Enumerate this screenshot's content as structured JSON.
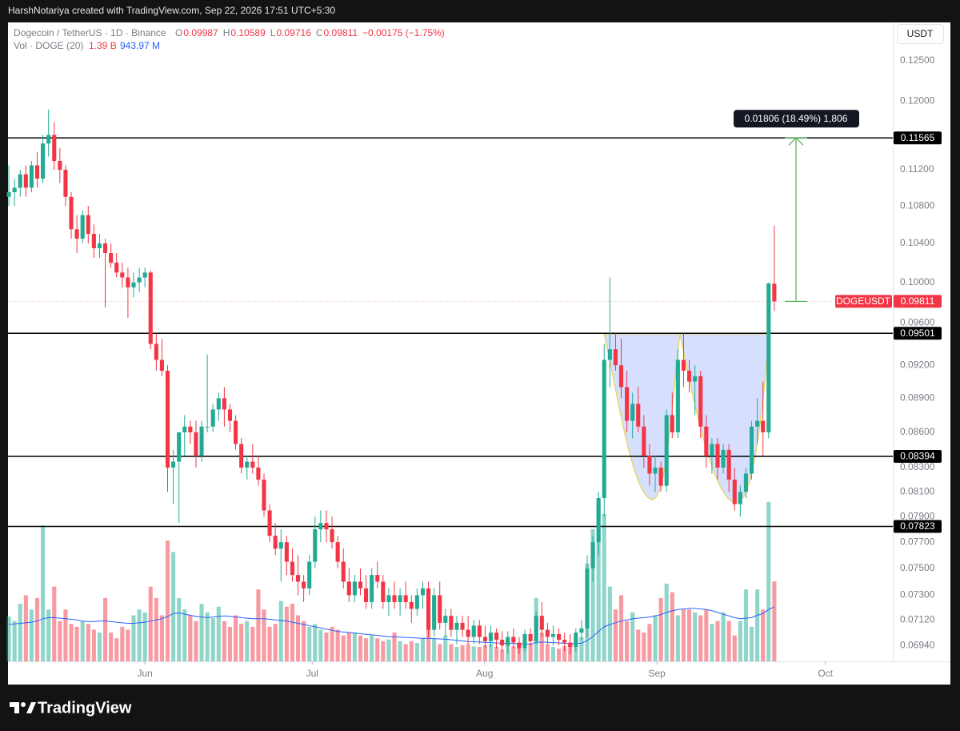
{
  "page": {
    "credit": "HarshNotariya created with TradingView.com, Sep 22, 2026 17:51 UTC+5:30",
    "brand": "TradingView"
  },
  "chart_data": {
    "type": "candlestick",
    "title": "Dogecoin / TetherUS · 1D · Binance",
    "currency": "USDT",
    "symbol": "DOGEUSDT",
    "ohlc_labels": [
      "O",
      "H",
      "L",
      "C"
    ],
    "change": "−0.00175 (−1.75%)",
    "volume_title": "Vol · DOGE (20)",
    "volume_readout": "1.39 B",
    "volume_ma_readout": "943.97 M",
    "measure_label": "0.01806 (18.49%) 1,806",
    "log_scale": true,
    "grid": false,
    "up_color": "#22ab94",
    "down_color": "#f23645",
    "level_color": "#000000",
    "measure_color": "#4caf50",
    "ma_color": "#2962ff",
    "ylim": [
      0.0683,
      0.1299
    ],
    "xlim": [
      -0.15,
      155.9
    ],
    "vol_ylim": [
      0,
      11100
    ],
    "yticks": [
      {
        "value": 0.125,
        "label": "0.12500"
      },
      {
        "value": 0.12,
        "label": "0.12000"
      },
      {
        "value": 0.112,
        "label": "0.11200"
      },
      {
        "value": 0.108,
        "label": "0.10800"
      },
      {
        "value": 0.104,
        "label": "0.10400"
      },
      {
        "value": 0.1,
        "label": "0.10000"
      },
      {
        "value": 0.096,
        "label": "0.09600"
      },
      {
        "value": 0.092,
        "label": "0.09200"
      },
      {
        "value": 0.089,
        "label": "0.08900"
      },
      {
        "value": 0.086,
        "label": "0.08600"
      },
      {
        "value": 0.083,
        "label": "0.08300"
      },
      {
        "value": 0.081,
        "label": "0.08100"
      },
      {
        "value": 0.079,
        "label": "0.07900"
      },
      {
        "value": 0.077,
        "label": "0.07700"
      },
      {
        "value": 0.075,
        "label": "0.07500"
      },
      {
        "value": 0.073,
        "label": "0.07300"
      },
      {
        "value": 0.0712,
        "label": "0.07120"
      },
      {
        "value": 0.0694,
        "label": "0.06940"
      }
    ],
    "xticks": [
      {
        "value": 24,
        "label": "Jun"
      },
      {
        "value": 53.5,
        "label": "Jul"
      },
      {
        "value": 83.9,
        "label": "Aug"
      },
      {
        "value": 114.3,
        "label": "Sep"
      },
      {
        "value": 144,
        "label": "Oct"
      }
    ],
    "levels": [
      0.11565,
      0.09501,
      0.08394,
      0.07823
    ],
    "current_price": 0.09811,
    "candles": [
      [
        0.109,
        0.1125,
        0.108,
        0.1095
      ],
      [
        0.1095,
        0.111,
        0.108,
        0.11
      ],
      [
        0.11,
        0.112,
        0.109,
        0.1115
      ],
      [
        0.1115,
        0.1125,
        0.109,
        0.11
      ],
      [
        0.11,
        0.113,
        0.1095,
        0.1125
      ],
      [
        0.1125,
        0.114,
        0.11,
        0.111
      ],
      [
        0.111,
        0.116,
        0.1105,
        0.115
      ],
      [
        0.115,
        0.119,
        0.1135,
        0.116
      ],
      [
        0.116,
        0.1175,
        0.112,
        0.113
      ],
      [
        0.113,
        0.1145,
        0.1105,
        0.112
      ],
      [
        0.112,
        0.1125,
        0.108,
        0.109
      ],
      [
        0.109,
        0.1095,
        0.1045,
        0.1055
      ],
      [
        0.1055,
        0.107,
        0.103,
        0.1045
      ],
      [
        0.1045,
        0.1075,
        0.104,
        0.107
      ],
      [
        0.107,
        0.108,
        0.104,
        0.105
      ],
      [
        0.105,
        0.106,
        0.1025,
        0.1035
      ],
      [
        0.1035,
        0.105,
        0.1025,
        0.104
      ],
      [
        0.104,
        0.1045,
        0.0975,
        0.103
      ],
      [
        0.103,
        0.104,
        0.1015,
        0.102
      ],
      [
        0.102,
        0.103,
        0.1005,
        0.101
      ],
      [
        0.101,
        0.102,
        0.0995,
        0.1005
      ],
      [
        0.1005,
        0.1015,
        0.0965,
        0.0995
      ],
      [
        0.0995,
        0.101,
        0.0985,
        0.1
      ],
      [
        0.1,
        0.1015,
        0.099,
        0.1005
      ],
      [
        0.1005,
        0.1015,
        0.0995,
        0.101
      ],
      [
        0.101,
        0.1012,
        0.0935,
        0.094
      ],
      [
        0.094,
        0.095,
        0.0915,
        0.0925
      ],
      [
        0.0925,
        0.0945,
        0.091,
        0.0915
      ],
      [
        0.0915,
        0.092,
        0.081,
        0.083
      ],
      [
        0.083,
        0.0845,
        0.08,
        0.0835
      ],
      [
        0.0835,
        0.086,
        0.0785,
        0.086
      ],
      [
        0.086,
        0.0875,
        0.084,
        0.0865
      ],
      [
        0.0865,
        0.087,
        0.085,
        0.086
      ],
      [
        0.086,
        0.087,
        0.083,
        0.084
      ],
      [
        0.084,
        0.087,
        0.0835,
        0.0865
      ],
      [
        0.0865,
        0.093,
        0.086,
        0.0865
      ],
      [
        0.0865,
        0.0885,
        0.086,
        0.088
      ],
      [
        0.088,
        0.0895,
        0.087,
        0.089
      ],
      [
        0.089,
        0.09,
        0.0865,
        0.088
      ],
      [
        0.088,
        0.0885,
        0.086,
        0.087
      ],
      [
        0.087,
        0.0875,
        0.0845,
        0.085
      ],
      [
        0.085,
        0.0855,
        0.0825,
        0.083
      ],
      [
        0.083,
        0.084,
        0.082,
        0.0835
      ],
      [
        0.0835,
        0.085,
        0.0825,
        0.083
      ],
      [
        0.083,
        0.084,
        0.0815,
        0.082
      ],
      [
        0.082,
        0.0825,
        0.079,
        0.0795
      ],
      [
        0.0795,
        0.08,
        0.077,
        0.0775
      ],
      [
        0.0775,
        0.0785,
        0.076,
        0.0765
      ],
      [
        0.0765,
        0.078,
        0.074,
        0.077
      ],
      [
        0.077,
        0.0775,
        0.0745,
        0.0755
      ],
      [
        0.0755,
        0.0765,
        0.074,
        0.0745
      ],
      [
        0.0745,
        0.076,
        0.073,
        0.074
      ],
      [
        0.074,
        0.0745,
        0.0725,
        0.0735
      ],
      [
        0.0735,
        0.076,
        0.073,
        0.0755
      ],
      [
        0.0755,
        0.079,
        0.075,
        0.078
      ],
      [
        0.078,
        0.0795,
        0.077,
        0.0785
      ],
      [
        0.0785,
        0.0795,
        0.077,
        0.078
      ],
      [
        0.078,
        0.079,
        0.0765,
        0.077
      ],
      [
        0.077,
        0.0775,
        0.075,
        0.0755
      ],
      [
        0.0755,
        0.0765,
        0.0735,
        0.074
      ],
      [
        0.074,
        0.075,
        0.0725,
        0.073
      ],
      [
        0.073,
        0.0745,
        0.0725,
        0.074
      ],
      [
        0.074,
        0.075,
        0.073,
        0.0735
      ],
      [
        0.0735,
        0.0745,
        0.072,
        0.0725
      ],
      [
        0.0725,
        0.075,
        0.072,
        0.0745
      ],
      [
        0.0745,
        0.0755,
        0.0735,
        0.074
      ],
      [
        0.074,
        0.0745,
        0.072,
        0.0725
      ],
      [
        0.0725,
        0.0735,
        0.0715,
        0.073
      ],
      [
        0.073,
        0.074,
        0.072,
        0.0725
      ],
      [
        0.0725,
        0.0735,
        0.0715,
        0.073
      ],
      [
        0.073,
        0.074,
        0.072,
        0.0725
      ],
      [
        0.0725,
        0.073,
        0.071,
        0.072
      ],
      [
        0.072,
        0.0735,
        0.0715,
        0.073
      ],
      [
        0.073,
        0.074,
        0.072,
        0.0735
      ],
      [
        0.0735,
        0.074,
        0.07,
        0.0705
      ],
      [
        0.0705,
        0.0735,
        0.07,
        0.073
      ],
      [
        0.073,
        0.074,
        0.0705,
        0.071
      ],
      [
        0.071,
        0.072,
        0.07,
        0.0715
      ],
      [
        0.0715,
        0.072,
        0.07,
        0.0705
      ],
      [
        0.0705,
        0.0715,
        0.0695,
        0.071
      ],
      [
        0.071,
        0.0715,
        0.07,
        0.0705
      ],
      [
        0.0705,
        0.0715,
        0.0695,
        0.07
      ],
      [
        0.07,
        0.0712,
        0.0695,
        0.0708
      ],
      [
        0.0708,
        0.0712,
        0.0695,
        0.07
      ],
      [
        0.07,
        0.0708,
        0.0692,
        0.0697
      ],
      [
        0.0697,
        0.0708,
        0.0693,
        0.0703
      ],
      [
        0.0703,
        0.0706,
        0.0692,
        0.0698
      ],
      [
        0.0698,
        0.0704,
        0.069,
        0.0694
      ],
      [
        0.0694,
        0.0704,
        0.0688,
        0.07
      ],
      [
        0.07,
        0.0706,
        0.0692,
        0.0696
      ],
      [
        0.0696,
        0.07,
        0.0688,
        0.0692
      ],
      [
        0.0692,
        0.0705,
        0.069,
        0.0702
      ],
      [
        0.0702,
        0.0706,
        0.0694,
        0.0697
      ],
      [
        0.0697,
        0.0718,
        0.0695,
        0.0715
      ],
      [
        0.0715,
        0.0725,
        0.07,
        0.0705
      ],
      [
        0.0705,
        0.071,
        0.0695,
        0.07
      ],
      [
        0.07,
        0.0708,
        0.0694,
        0.0702
      ],
      [
        0.0702,
        0.0706,
        0.0694,
        0.0698
      ],
      [
        0.0698,
        0.0703,
        0.069,
        0.0696
      ],
      [
        0.0696,
        0.0702,
        0.0688,
        0.0693
      ],
      [
        0.0693,
        0.0706,
        0.069,
        0.0703
      ],
      [
        0.0703,
        0.0712,
        0.0698,
        0.0706
      ],
      [
        0.0706,
        0.076,
        0.07,
        0.075
      ],
      [
        0.075,
        0.0775,
        0.074,
        0.077
      ],
      [
        0.077,
        0.081,
        0.076,
        0.0805
      ],
      [
        0.0805,
        0.094,
        0.079,
        0.0925
      ],
      [
        0.0925,
        0.1005,
        0.09,
        0.0935
      ],
      [
        0.0935,
        0.095,
        0.0915,
        0.092
      ],
      [
        0.092,
        0.0945,
        0.089,
        0.09
      ],
      [
        0.09,
        0.0915,
        0.086,
        0.087
      ],
      [
        0.087,
        0.0895,
        0.0855,
        0.0885
      ],
      [
        0.0885,
        0.09,
        0.086,
        0.0865
      ],
      [
        0.0865,
        0.0875,
        0.083,
        0.084
      ],
      [
        0.084,
        0.085,
        0.0815,
        0.0825
      ],
      [
        0.0825,
        0.084,
        0.081,
        0.083
      ],
      [
        0.083,
        0.0835,
        0.081,
        0.0815
      ],
      [
        0.0815,
        0.088,
        0.081,
        0.0875
      ],
      [
        0.0875,
        0.0895,
        0.0855,
        0.086
      ],
      [
        0.086,
        0.0935,
        0.0855,
        0.0925
      ],
      [
        0.0925,
        0.095,
        0.09,
        0.0915
      ],
      [
        0.0915,
        0.0925,
        0.0895,
        0.0905
      ],
      [
        0.0905,
        0.092,
        0.0875,
        0.091
      ],
      [
        0.091,
        0.0915,
        0.0855,
        0.0865
      ],
      [
        0.0865,
        0.0875,
        0.083,
        0.084
      ],
      [
        0.084,
        0.0855,
        0.0825,
        0.085
      ],
      [
        0.085,
        0.0855,
        0.082,
        0.083
      ],
      [
        0.083,
        0.085,
        0.0825,
        0.0845
      ],
      [
        0.0845,
        0.085,
        0.081,
        0.082
      ],
      [
        0.082,
        0.083,
        0.0795,
        0.08
      ],
      [
        0.08,
        0.0815,
        0.079,
        0.081
      ],
      [
        0.081,
        0.083,
        0.0805,
        0.0825
      ],
      [
        0.0825,
        0.087,
        0.082,
        0.0865
      ],
      [
        0.0865,
        0.089,
        0.085,
        0.087
      ],
      [
        0.087,
        0.0905,
        0.084,
        0.086
      ],
      [
        0.086,
        0.1,
        0.0855,
        0.0999
      ],
      [
        0.09987,
        0.10589,
        0.09716,
        0.09811
      ]
    ],
    "volume": [
      780,
      700,
      1000,
      1150,
      900,
      1100,
      2360,
      900,
      1300,
      700,
      900,
      650,
      600,
      700,
      650,
      550,
      500,
      1100,
      500,
      400,
      600,
      550,
      800,
      900,
      850,
      1300,
      1100,
      800,
      2100,
      1900,
      1100,
      900,
      800,
      700,
      1000,
      850,
      750,
      950,
      700,
      600,
      800,
      650,
      700,
      600,
      1250,
      900,
      600,
      650,
      1050,
      950,
      1000,
      800,
      700,
      600,
      650,
      550,
      500,
      600,
      550,
      450,
      500,
      500,
      450,
      400,
      450,
      400,
      350,
      380,
      500,
      350,
      300,
      350,
      320,
      400,
      700,
      400,
      300,
      450,
      300,
      250,
      280,
      300,
      260,
      250,
      280,
      300,
      250,
      200,
      350,
      260,
      250,
      220,
      300,
      1100,
      500,
      300,
      250,
      220,
      260,
      300,
      380,
      420,
      1700,
      2300,
      2700,
      2560,
      1300,
      900,
      1150,
      700,
      850,
      550,
      500,
      650,
      800,
      1100,
      1350,
      1200,
      800,
      900,
      900,
      850,
      800,
      900,
      650,
      700,
      850,
      700,
      450,
      700,
      1250,
      600,
      1250,
      900,
      2770,
      1390
    ],
    "volume_ma": [
      640,
      650,
      660,
      670,
      680,
      700,
      740,
      760,
      760,
      750,
      740,
      730,
      720,
      700,
      690,
      690,
      700,
      700,
      690,
      680,
      670,
      660,
      660,
      670,
      680,
      700,
      720,
      740,
      780,
      830,
      840,
      820,
      800,
      780,
      770,
      760,
      770,
      780,
      790,
      780,
      770,
      760,
      750,
      740,
      740,
      740,
      730,
      720,
      710,
      700,
      680,
      660,
      640,
      620,
      600,
      580,
      560,
      540,
      520,
      510,
      500,
      490,
      480,
      470,
      460,
      450,
      440,
      430,
      425,
      420,
      415,
      410,
      405,
      400,
      400,
      395,
      390,
      385,
      375,
      365,
      355,
      345,
      340,
      335,
      330,
      325,
      320,
      315,
      315,
      310,
      305,
      300,
      300,
      330,
      335,
      330,
      325,
      320,
      315,
      310,
      310,
      315,
      360,
      430,
      520,
      600,
      640,
      670,
      700,
      720,
      740,
      750,
      760,
      770,
      790,
      810,
      850,
      880,
      900,
      910,
      920,
      920,
      910,
      900,
      880,
      850,
      820,
      790,
      760,
      740,
      750,
      760,
      800,
      830,
      900,
      943.97
    ]
  }
}
